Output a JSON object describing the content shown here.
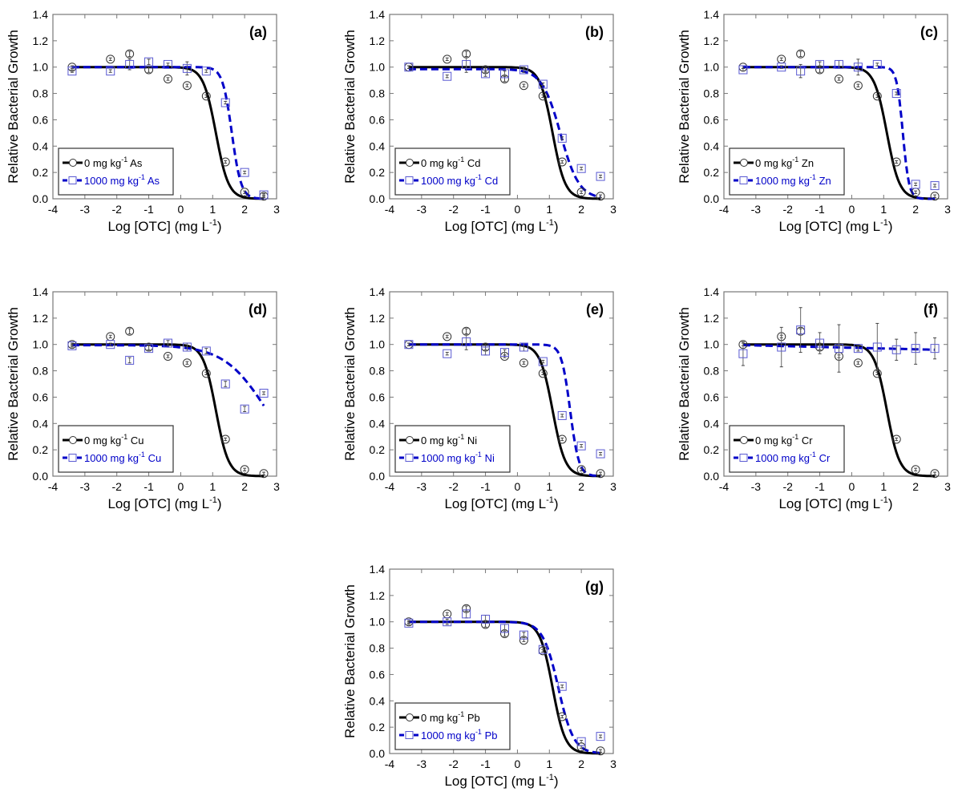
{
  "figure": {
    "colors": {
      "control": "#000000",
      "treated": "#0000c8",
      "treated_marker": "#5a5ad2",
      "axis": "#777777"
    }
  },
  "chart_data": [
    {
      "id": "a",
      "type": "line",
      "panel_label": "(a)",
      "xlabel": "Log [OTC] (mg L",
      "xlabel_sup": "-1",
      "xlabel_end": ")",
      "ylabel": "Relative Bacterial Growth",
      "xlim": [
        -4,
        3
      ],
      "ylim": [
        0,
        1.4
      ],
      "xticks": [
        "-4",
        "-3",
        "-2",
        "-1",
        "0",
        "1",
        "2",
        "3"
      ],
      "yticks": [
        "0.0",
        "0.2",
        "0.4",
        "0.6",
        "0.8",
        "1.0",
        "1.2",
        "1.4"
      ],
      "legend_position": "bottom-left",
      "x": [
        -3.4,
        -2.2,
        -1.6,
        -1.0,
        -0.4,
        0.2,
        0.8,
        1.4,
        2.0,
        2.6
      ],
      "series": [
        {
          "name": "0 mg kg-1 As",
          "label_pre": "0 mg kg",
          "label_sup": "-1",
          "label_post": " As",
          "marker": "circle",
          "style": "solid",
          "values": [
            1.0,
            1.06,
            1.1,
            0.98,
            0.91,
            0.86,
            0.78,
            0.28,
            0.05,
            0.02
          ],
          "errors": [
            0.01,
            0.01,
            0.02,
            0.02,
            0.01,
            0.01,
            0.01,
            0.01,
            0.01,
            0.01
          ],
          "fit": {
            "ec50": 1.1,
            "slope": 2.2,
            "top": 1.0,
            "bottom": 0.0
          }
        },
        {
          "name": "1000 mg kg-1 As",
          "label_pre": "1000 mg kg",
          "label_sup": "-1",
          "label_post": " As",
          "marker": "square",
          "style": "dashed",
          "values": [
            0.97,
            0.97,
            1.02,
            1.04,
            1.02,
            0.99,
            0.97,
            0.73,
            0.2,
            0.03
          ],
          "errors": [
            0.01,
            0.01,
            0.04,
            0.02,
            0.01,
            0.05,
            0.01,
            0.01,
            0.01,
            0.01
          ],
          "fit": {
            "ec50": 1.6,
            "slope": 3.0,
            "top": 1.0,
            "bottom": 0.0
          }
        }
      ]
    },
    {
      "id": "b",
      "type": "line",
      "panel_label": "(b)",
      "xlabel": "Log [OTC] (mg L",
      "xlabel_sup": "-1",
      "xlabel_end": ")",
      "ylabel": "Relative Bacterial Growth",
      "xlim": [
        -4,
        3
      ],
      "ylim": [
        0,
        1.4
      ],
      "xticks": [
        "-4",
        "-3",
        "-2",
        "-1",
        "0",
        "1",
        "2",
        "3"
      ],
      "yticks": [
        "0.0",
        "0.2",
        "0.4",
        "0.6",
        "0.8",
        "1.0",
        "1.2",
        "1.4"
      ],
      "legend_position": "bottom-left",
      "x": [
        -3.4,
        -2.2,
        -1.6,
        -1.0,
        -0.4,
        0.2,
        0.8,
        1.4,
        2.0,
        2.6
      ],
      "series": [
        {
          "name": "0 mg kg-1 Cd",
          "label_pre": "0 mg kg",
          "label_sup": "-1",
          "label_post": " Cd",
          "marker": "circle",
          "style": "solid",
          "values": [
            1.0,
            1.06,
            1.1,
            0.98,
            0.91,
            0.86,
            0.78,
            0.28,
            0.05,
            0.02
          ],
          "errors": [
            0.01,
            0.01,
            0.02,
            0.02,
            0.02,
            0.01,
            0.01,
            0.01,
            0.01,
            0.01
          ],
          "fit": {
            "ec50": 1.1,
            "slope": 2.2,
            "top": 1.0,
            "bottom": 0.0
          }
        },
        {
          "name": "1000 mg kg-1 Cd",
          "label_pre": "1000 mg kg",
          "label_sup": "-1",
          "label_post": " Cd",
          "marker": "square",
          "style": "dashed",
          "values": [
            1.0,
            0.93,
            1.02,
            0.95,
            0.95,
            0.98,
            0.87,
            0.46,
            0.23,
            0.17
          ],
          "errors": [
            0.01,
            0.01,
            0.06,
            0.02,
            0.02,
            0.02,
            0.01,
            0.01,
            0.01,
            0.01
          ],
          "fit": {
            "ec50": 1.35,
            "slope": 1.5,
            "top": 0.985,
            "bottom": 0.0
          }
        }
      ]
    },
    {
      "id": "c",
      "type": "line",
      "panel_label": "(c)",
      "xlabel": "Log [OTC] (mg L",
      "xlabel_sup": "-1",
      "xlabel_end": ")",
      "ylabel": "Relative Bacterial Growth",
      "xlim": [
        -4,
        3
      ],
      "ylim": [
        0,
        1.4
      ],
      "xticks": [
        "-4",
        "-3",
        "-2",
        "-1",
        "0",
        "1",
        "2",
        "3"
      ],
      "yticks": [
        "0.0",
        "0.2",
        "0.4",
        "0.6",
        "0.8",
        "1.0",
        "1.2",
        "1.4"
      ],
      "legend_position": "bottom-left",
      "x": [
        -3.4,
        -2.2,
        -1.6,
        -1.0,
        -0.4,
        0.2,
        0.8,
        1.4,
        2.0,
        2.6
      ],
      "series": [
        {
          "name": "0 mg kg-1 Zn",
          "label_pre": "0 mg kg",
          "label_sup": "-1",
          "label_post": " Zn",
          "marker": "circle",
          "style": "solid",
          "values": [
            1.0,
            1.06,
            1.1,
            0.98,
            0.91,
            0.86,
            0.78,
            0.28,
            0.05,
            0.02
          ],
          "errors": [
            0.01,
            0.01,
            0.02,
            0.02,
            0.01,
            0.01,
            0.01,
            0.01,
            0.01,
            0.01
          ],
          "fit": {
            "ec50": 1.1,
            "slope": 2.2,
            "top": 1.0,
            "bottom": 0.0
          }
        },
        {
          "name": "1000 mg kg-1 Zn",
          "label_pre": "1000 mg kg",
          "label_sup": "-1",
          "label_post": " Zn",
          "marker": "square",
          "style": "dashed",
          "values": [
            0.98,
            1.0,
            0.97,
            1.02,
            1.02,
            1.0,
            1.02,
            0.8,
            0.11,
            0.1
          ],
          "errors": [
            0.01,
            0.01,
            0.05,
            0.02,
            0.03,
            0.06,
            0.01,
            0.01,
            0.01,
            0.01
          ],
          "fit": {
            "ec50": 1.6,
            "slope": 4.5,
            "top": 1.0,
            "bottom": 0.0
          }
        }
      ]
    },
    {
      "id": "d",
      "type": "line",
      "panel_label": "(d)",
      "xlabel": "Log [OTC] (mg L",
      "xlabel_sup": "-1",
      "xlabel_end": ")",
      "ylabel": "Relative Bacterial Growth",
      "xlim": [
        -4,
        3
      ],
      "ylim": [
        0,
        1.4
      ],
      "xticks": [
        "-4",
        "-3",
        "-2",
        "-1",
        "0",
        "1",
        "2",
        "3"
      ],
      "yticks": [
        "0.0",
        "0.2",
        "0.4",
        "0.6",
        "0.8",
        "1.0",
        "1.2",
        "1.4"
      ],
      "legend_position": "bottom-left",
      "x": [
        -3.4,
        -2.2,
        -1.6,
        -1.0,
        -0.4,
        0.2,
        0.8,
        1.4,
        2.0,
        2.6
      ],
      "series": [
        {
          "name": "0 mg kg-1 Cu",
          "label_pre": "0 mg kg",
          "label_sup": "-1",
          "label_post": " Cu",
          "marker": "circle",
          "style": "solid",
          "values": [
            1.0,
            1.06,
            1.1,
            0.98,
            0.91,
            0.86,
            0.78,
            0.28,
            0.05,
            0.02
          ],
          "errors": [
            0.01,
            0.01,
            0.02,
            0.02,
            0.01,
            0.01,
            0.01,
            0.01,
            0.01,
            0.01
          ],
          "fit": {
            "ec50": 1.1,
            "slope": 2.2,
            "top": 1.0,
            "bottom": 0.0
          }
        },
        {
          "name": "1000 mg kg-1 Cu",
          "label_pre": "1000 mg kg",
          "label_sup": "-1",
          "label_post": " Cu",
          "marker": "square",
          "style": "dashed",
          "values": [
            0.99,
            1.0,
            0.88,
            0.97,
            1.01,
            0.98,
            0.95,
            0.7,
            0.51,
            0.63
          ],
          "errors": [
            0.01,
            0.01,
            0.02,
            0.02,
            0.02,
            0.03,
            0.02,
            0.02,
            0.02,
            0.01
          ],
          "fit": {
            "ec50": 2.7,
            "slope": 0.65,
            "top": 0.995,
            "bottom": 0.0
          }
        }
      ]
    },
    {
      "id": "e",
      "type": "line",
      "panel_label": "(e)",
      "xlabel": "Log [OTC] (mg L",
      "xlabel_sup": "-1",
      "xlabel_end": ")",
      "ylabel": "Relative Bacterial Growth",
      "xlim": [
        -4,
        3
      ],
      "ylim": [
        0,
        1.4
      ],
      "xticks": [
        "-4",
        "-3",
        "-2",
        "-1",
        "0",
        "1",
        "2",
        "3"
      ],
      "yticks": [
        "0.0",
        "0.2",
        "0.4",
        "0.6",
        "0.8",
        "1.0",
        "1.2",
        "1.4"
      ],
      "legend_position": "bottom-left",
      "x": [
        -3.4,
        -2.2,
        -1.6,
        -1.0,
        -0.4,
        0.2,
        0.8,
        1.4,
        2.0,
        2.6
      ],
      "series": [
        {
          "name": "0 mg kg-1 Ni",
          "label_pre": "0 mg kg",
          "label_sup": "-1",
          "label_post": " Ni",
          "marker": "circle",
          "style": "solid",
          "values": [
            1.0,
            1.06,
            1.1,
            0.98,
            0.91,
            0.86,
            0.78,
            0.28,
            0.05,
            0.02
          ],
          "errors": [
            0.01,
            0.01,
            0.02,
            0.02,
            0.01,
            0.01,
            0.01,
            0.01,
            0.01,
            0.01
          ],
          "fit": {
            "ec50": 1.1,
            "slope": 2.2,
            "top": 1.0,
            "bottom": 0.0
          }
        },
        {
          "name": "1000 mg kg-1 Ni",
          "label_pre": "1000 mg kg",
          "label_sup": "-1",
          "label_post": " Ni",
          "marker": "square",
          "style": "dashed",
          "values": [
            1.0,
            0.93,
            1.02,
            0.95,
            0.94,
            0.98,
            0.87,
            0.46,
            0.23,
            0.17
          ],
          "errors": [
            0.01,
            0.01,
            0.06,
            0.03,
            0.02,
            0.03,
            0.01,
            0.01,
            0.01,
            0.01
          ],
          "fit": {
            "ec50": 1.65,
            "slope": 3.2,
            "top": 1.0,
            "bottom": 0.0
          }
        }
      ]
    },
    {
      "id": "f",
      "type": "line",
      "panel_label": "(f)",
      "xlabel": "Log [OTC] (mg L",
      "xlabel_sup": "-1",
      "xlabel_end": ")",
      "ylabel": "Relative Bacterial Growth",
      "xlim": [
        -4,
        3
      ],
      "ylim": [
        0,
        1.4
      ],
      "xticks": [
        "-4",
        "-3",
        "-2",
        "-1",
        "0",
        "1",
        "2",
        "3"
      ],
      "yticks": [
        "0.0",
        "0.2",
        "0.4",
        "0.6",
        "0.8",
        "1.0",
        "1.2",
        "1.4"
      ],
      "legend_position": "bottom-left",
      "x": [
        -3.4,
        -2.2,
        -1.6,
        -1.0,
        -0.4,
        0.2,
        0.8,
        1.4,
        2.0,
        2.6
      ],
      "series": [
        {
          "name": "0 mg kg-1 Cr",
          "label_pre": "0 mg kg",
          "label_sup": "-1",
          "label_post": " Cr",
          "marker": "circle",
          "style": "solid",
          "values": [
            1.0,
            1.06,
            1.1,
            0.98,
            0.91,
            0.86,
            0.78,
            0.28,
            0.05,
            0.02
          ],
          "errors": [
            0.01,
            0.01,
            0.02,
            0.02,
            0.01,
            0.01,
            0.01,
            0.01,
            0.01,
            0.01
          ],
          "fit": {
            "ec50": 1.1,
            "slope": 2.2,
            "top": 1.0,
            "bottom": 0.0
          }
        },
        {
          "name": "1000 mg kg-1 Cr",
          "label_pre": "1000 mg kg",
          "label_sup": "-1",
          "label_post": " Cr",
          "marker": "square",
          "style": "dashed",
          "values": [
            0.93,
            0.98,
            1.11,
            1.01,
            0.97,
            0.97,
            0.98,
            0.96,
            0.97,
            0.97
          ],
          "errors": [
            0.09,
            0.15,
            0.17,
            0.08,
            0.18,
            0.02,
            0.18,
            0.08,
            0.12,
            0.08
          ],
          "fit": {
            "linear": true,
            "y_start": 0.995,
            "y_end": 0.96
          }
        }
      ]
    },
    {
      "id": "g",
      "type": "line",
      "panel_label": "(g)",
      "xlabel": "Log [OTC] (mg L",
      "xlabel_sup": "-1",
      "xlabel_end": ")",
      "ylabel": "Relative Bacterial Growth",
      "xlim": [
        -4,
        3
      ],
      "ylim": [
        0,
        1.4
      ],
      "xticks": [
        "-4",
        "-3",
        "-2",
        "-1",
        "0",
        "1",
        "2",
        "3"
      ],
      "yticks": [
        "0.0",
        "0.2",
        "0.4",
        "0.6",
        "0.8",
        "1.0",
        "1.2",
        "1.4"
      ],
      "legend_position": "bottom-left",
      "x": [
        -3.4,
        -2.2,
        -1.6,
        -1.0,
        -0.4,
        0.2,
        0.8,
        1.4,
        2.0,
        2.6
      ],
      "series": [
        {
          "name": "0 mg kg-1 Pb",
          "label_pre": "0 mg kg",
          "label_sup": "-1",
          "label_post": " Pb",
          "marker": "circle",
          "style": "solid",
          "values": [
            1.0,
            1.06,
            1.1,
            0.98,
            0.91,
            0.86,
            0.78,
            0.28,
            0.05,
            0.02
          ],
          "errors": [
            0.01,
            0.01,
            0.02,
            0.02,
            0.02,
            0.01,
            0.01,
            0.01,
            0.01,
            0.01
          ],
          "fit": {
            "ec50": 1.1,
            "slope": 2.2,
            "top": 1.0,
            "bottom": 0.0
          }
        },
        {
          "name": "1000 mg kg-1 Pb",
          "label_pre": "1000 mg kg",
          "label_sup": "-1",
          "label_post": " Pb",
          "marker": "square",
          "style": "dashed",
          "values": [
            0.99,
            1.0,
            1.06,
            1.02,
            0.95,
            0.9,
            0.79,
            0.51,
            0.09,
            0.13
          ],
          "errors": [
            0.01,
            0.02,
            0.03,
            0.03,
            0.03,
            0.02,
            0.02,
            0.01,
            0.01,
            0.01
          ],
          "fit": {
            "ec50": 1.28,
            "slope": 1.8,
            "top": 1.0,
            "bottom": 0.0
          }
        }
      ]
    }
  ]
}
